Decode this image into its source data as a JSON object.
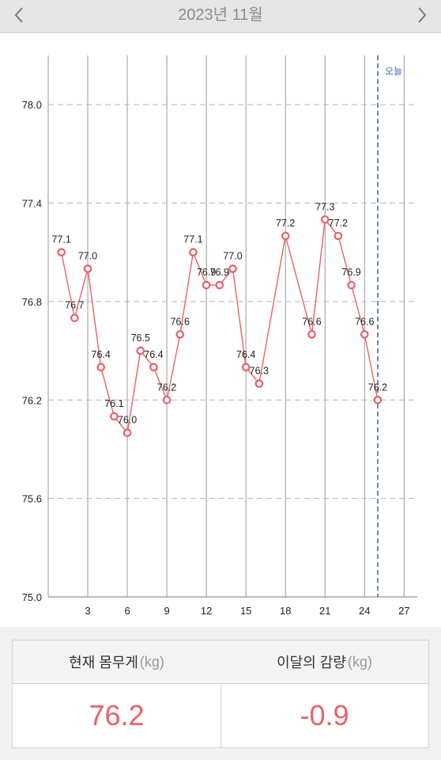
{
  "header": {
    "title": "2023년 11월"
  },
  "chart_data": {
    "type": "line",
    "x": [
      1,
      2,
      3,
      4,
      5,
      6,
      7,
      8,
      9,
      10,
      11,
      12,
      13,
      14,
      15,
      16,
      18,
      20,
      21,
      22,
      23,
      24,
      25
    ],
    "values": [
      77.1,
      76.7,
      77.0,
      76.4,
      76.1,
      76.0,
      76.5,
      76.4,
      76.2,
      76.6,
      77.1,
      76.9,
      76.9,
      77.0,
      76.4,
      76.3,
      77.2,
      76.6,
      77.3,
      77.2,
      76.9,
      76.6,
      76.2
    ],
    "labels": [
      "77.1",
      "76.7",
      "77.0",
      "76.4",
      "76.1",
      "76.0",
      "76.5",
      "76.4",
      "76.2",
      "76.6",
      "77.1",
      "76.9",
      "76.9",
      "77.0",
      "76.4",
      "76.3",
      "77.2",
      "76.6",
      "77.3",
      "77.2",
      "76.9",
      "76.6",
      "76.2"
    ],
    "xticks": [
      3,
      6,
      9,
      12,
      15,
      18,
      21,
      24,
      27
    ],
    "yticks": [
      75.0,
      75.6,
      76.2,
      76.8,
      77.4,
      78.0
    ],
    "ytick_labels": [
      "75.0",
      "75.6",
      "76.2",
      "76.8",
      "77.4",
      "78.0"
    ],
    "xlim": [
      0,
      28
    ],
    "ylim": [
      75.0,
      78.3
    ],
    "today_x": 25,
    "today_label": "오늘",
    "line_color": "#e8626a",
    "today_color": "#3a6fa8",
    "vertical_grid": true,
    "horizontal_grid": "dashed"
  },
  "summary": {
    "current_weight": {
      "label": "현재 몸무게",
      "unit": "(kg)",
      "value": "76.2"
    },
    "month_change": {
      "label": "이달의 감량",
      "unit": "(kg)",
      "value": "-0.9"
    }
  },
  "colors": {
    "accent": "#e8626a",
    "header_bg": "#e6e6e6",
    "today": "#3a6fa8"
  }
}
